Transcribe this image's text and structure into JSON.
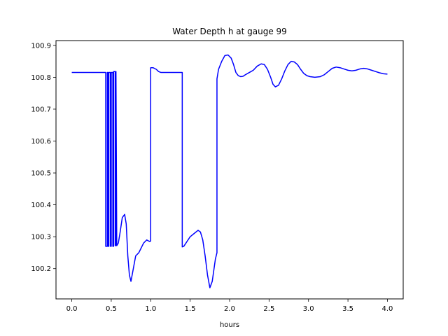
{
  "chart_data": {
    "type": "line",
    "title": "Water Depth h at gauge 99",
    "xlabel": "hours",
    "ylabel": "",
    "xlim": [
      -0.2,
      4.2
    ],
    "ylim": [
      100.105,
      100.915
    ],
    "xticks": [
      0.0,
      0.5,
      1.0,
      1.5,
      2.0,
      2.5,
      3.0,
      3.5,
      4.0
    ],
    "xtick_labels": [
      "0.0",
      "0.5",
      "1.0",
      "1.5",
      "2.0",
      "2.5",
      "3.0",
      "3.5",
      "4.0"
    ],
    "yticks": [
      100.2,
      100.3,
      100.4,
      100.5,
      100.6,
      100.7,
      100.8,
      100.9
    ],
    "ytick_labels": [
      "100.2",
      "100.3",
      "100.4",
      "100.5",
      "100.6",
      "100.7",
      "100.8",
      "100.9"
    ],
    "grid": false,
    "series": [
      {
        "color": "#0000ff",
        "x": [
          0.0,
          0.43,
          0.43,
          0.45,
          0.45,
          0.46,
          0.46,
          0.47,
          0.47,
          0.49,
          0.49,
          0.5,
          0.5,
          0.52,
          0.52,
          0.53,
          0.53,
          0.55,
          0.55,
          0.56,
          0.56,
          0.57,
          0.59,
          0.61,
          0.64,
          0.67,
          0.69,
          0.7,
          0.71,
          0.73,
          0.75,
          0.78,
          0.81,
          0.83,
          0.85,
          0.87,
          0.89,
          0.91,
          0.93,
          0.95,
          0.97,
          0.99,
          1.0,
          1.0,
          1.03,
          1.07,
          1.1,
          1.13,
          1.17,
          1.25,
          1.35,
          1.4,
          1.4,
          1.42,
          1.46,
          1.5,
          1.55,
          1.6,
          1.63,
          1.66,
          1.69,
          1.72,
          1.75,
          1.78,
          1.82,
          1.84,
          1.84,
          1.86,
          1.9,
          1.94,
          1.98,
          2.02,
          2.05,
          2.08,
          2.11,
          2.14,
          2.17,
          2.2,
          2.25,
          2.3,
          2.35,
          2.4,
          2.44,
          2.48,
          2.52,
          2.55,
          2.58,
          2.62,
          2.66,
          2.7,
          2.74,
          2.78,
          2.82,
          2.86,
          2.9,
          2.94,
          2.98,
          3.02,
          3.08,
          3.15,
          3.2,
          3.25,
          3.3,
          3.35,
          3.4,
          3.45,
          3.5,
          3.55,
          3.6,
          3.65,
          3.7,
          3.75,
          3.8,
          3.85,
          3.9,
          3.95,
          4.0
        ],
        "y": [
          100.815,
          100.815,
          100.27,
          100.27,
          100.815,
          100.815,
          100.27,
          100.27,
          100.815,
          100.815,
          100.27,
          100.27,
          100.815,
          100.815,
          100.27,
          100.27,
          100.818,
          100.818,
          100.272,
          100.272,
          100.818,
          100.272,
          100.28,
          100.31,
          100.36,
          100.37,
          100.34,
          100.29,
          100.24,
          100.18,
          100.16,
          100.2,
          100.24,
          100.245,
          100.25,
          100.26,
          100.27,
          100.28,
          100.285,
          100.29,
          100.287,
          100.285,
          100.287,
          100.83,
          100.83,
          100.825,
          100.818,
          100.815,
          100.815,
          100.815,
          100.815,
          100.815,
          100.268,
          100.27,
          100.285,
          100.3,
          100.31,
          100.32,
          100.315,
          100.29,
          100.24,
          100.18,
          100.14,
          100.16,
          100.23,
          100.25,
          100.795,
          100.825,
          100.85,
          100.868,
          100.87,
          100.86,
          100.84,
          100.815,
          100.805,
          100.802,
          100.803,
          100.808,
          100.815,
          100.822,
          100.835,
          100.842,
          100.84,
          100.825,
          100.8,
          100.778,
          100.77,
          100.775,
          100.795,
          100.82,
          100.84,
          100.85,
          100.848,
          100.84,
          100.825,
          100.812,
          100.805,
          100.802,
          100.8,
          100.802,
          100.808,
          100.818,
          100.828,
          100.832,
          100.83,
          100.826,
          100.822,
          100.82,
          100.822,
          100.826,
          100.828,
          100.826,
          100.822,
          100.818,
          100.814,
          100.811,
          100.81
        ]
      }
    ]
  }
}
